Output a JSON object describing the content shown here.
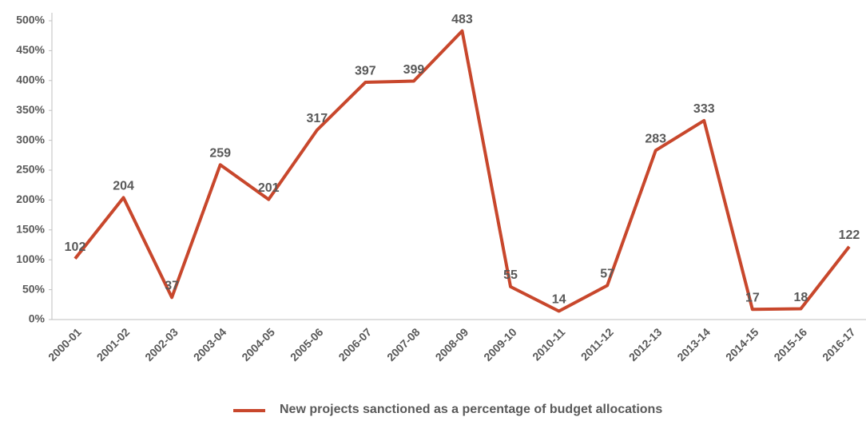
{
  "chart_data": {
    "type": "line",
    "categories": [
      "2000-01",
      "2001-02",
      "2002-03",
      "2003-04",
      "2004-05",
      "2005-06",
      "2006-07",
      "2007-08",
      "2008-09",
      "2009-10",
      "2010-11",
      "2011-12",
      "2012-13",
      "2013-14",
      "2014-15",
      "2015-16",
      "2016-17"
    ],
    "series": [
      {
        "name": "New projects sanctioned as a percentage of budget allocations",
        "color": "#c8472c",
        "values": [
          102,
          204,
          37,
          259,
          201,
          317,
          397,
          399,
          483,
          55,
          14,
          57,
          283,
          333,
          17,
          18,
          122
        ]
      }
    ],
    "ylim": [
      0,
      500
    ],
    "yticks": [
      {
        "value": 0,
        "label": "0%"
      },
      {
        "value": 50,
        "label": "50%"
      },
      {
        "value": 100,
        "label": "100%"
      },
      {
        "value": 150,
        "label": "150%"
      },
      {
        "value": 200,
        "label": "200%"
      },
      {
        "value": 250,
        "label": "250%"
      },
      {
        "value": 300,
        "label": "300%"
      },
      {
        "value": 350,
        "label": "350%"
      },
      {
        "value": 400,
        "label": "400%"
      },
      {
        "value": 450,
        "label": "450%"
      },
      {
        "value": 500,
        "label": "500%"
      }
    ],
    "legend": "bottom"
  }
}
